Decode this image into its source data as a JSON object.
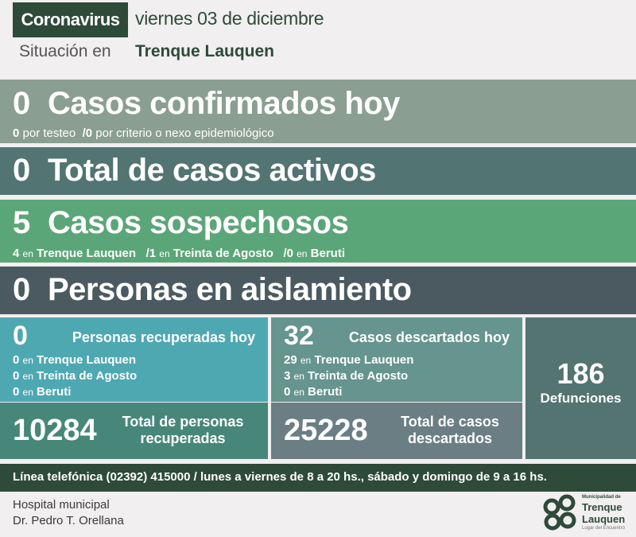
{
  "header": {
    "tag": "Coronavirus",
    "date": "viernes 03 de diciembre",
    "situacion_label": "Situación en",
    "city": "Trenque Lauquen"
  },
  "confirmados": {
    "value": "0",
    "label": "Casos confirmados hoy",
    "detail": [
      {
        "n": "0",
        "t": "por testeo"
      },
      {
        "n": "/0",
        "t": "por criterio o nexo epidemiológico"
      }
    ]
  },
  "activos": {
    "value": "0",
    "label": "Total de casos activos"
  },
  "sospechosos": {
    "value": "5",
    "label": "Casos sospechosos",
    "detail": [
      {
        "n": "4",
        "en": "en",
        "place": "Trenque Lauquen"
      },
      {
        "n": "/1",
        "en": "en",
        "place": "Treinta de Agosto"
      },
      {
        "n": "/0",
        "en": "en",
        "place": "Beruti"
      }
    ]
  },
  "aislamiento": {
    "value": "0",
    "label": "Personas en aislamiento"
  },
  "recuperados": {
    "value": "0",
    "label": "Personas recuperadas hoy",
    "detail": [
      {
        "n": "0",
        "en": "en",
        "place": "Trenque Lauquen"
      },
      {
        "n": "0",
        "en": "en",
        "place": "Treinta de Agosto"
      },
      {
        "n": "0",
        "en": "en",
        "place": "Beruti"
      }
    ],
    "total": "10284",
    "total_label1": "Total de personas",
    "total_label2": "recuperadas"
  },
  "descartados": {
    "value": "32",
    "label": "Casos descartados hoy",
    "detail": [
      {
        "n": "29",
        "en": "en",
        "place": "Trenque Lauquen"
      },
      {
        "n": "3",
        "en": "en",
        "place": "Treinta de Agosto"
      },
      {
        "n": "0",
        "en": "en",
        "place": "Beruti"
      }
    ],
    "total": "25228",
    "total_label1": "Total de casos",
    "total_label2": "descartados"
  },
  "defunciones": {
    "value": "186",
    "label": "Defunciones"
  },
  "footer": {
    "phone": "Línea telefónica (02392) 415000 / lunes a viernes de 8 a 20 hs., sábado y domingo de 9 a 16 hs.",
    "hospital1": "Hospital municipal",
    "hospital2": "Dr. Pedro T. Orellana",
    "logo_top": "Municipalidad de",
    "logo_main1": "Trenque",
    "logo_main2": "Lauquen",
    "logo_tag": "Lugar del Encuentro"
  },
  "colors": {
    "dark_green": "#2e4a39",
    "confirmados": "#8a9e91",
    "activos": "#527472",
    "sospechosos": "#5ba678",
    "aislamiento": "#4b5a60",
    "recuperados": "#4ea8b2",
    "recuperados_total": "#47877a",
    "descartados": "#66948f",
    "descartados_total": "#6a7e84",
    "defunciones": "#537470"
  }
}
